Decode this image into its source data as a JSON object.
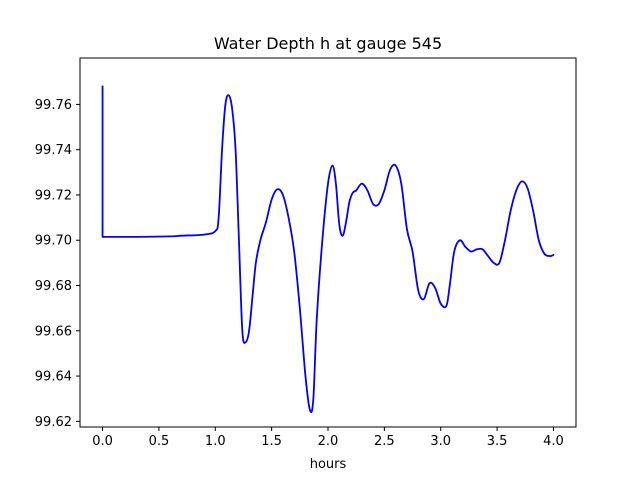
{
  "chart_data": {
    "type": "line",
    "title": "Water Depth h at gauge 545",
    "xlabel": "hours",
    "ylabel": "",
    "xlim": [
      -0.2,
      4.2
    ],
    "ylim": [
      99.6175,
      99.7805
    ],
    "grid": false,
    "xticks": [
      0.0,
      0.5,
      1.0,
      1.5,
      2.0,
      2.5,
      3.0,
      3.5,
      4.0
    ],
    "xtick_labels": [
      "0.0",
      "0.5",
      "1.0",
      "1.5",
      "2.0",
      "2.5",
      "3.0",
      "3.5",
      "4.0"
    ],
    "yticks": [
      99.62,
      99.64,
      99.66,
      99.68,
      99.7,
      99.72,
      99.74,
      99.76
    ],
    "ytick_labels": [
      "99.62",
      "99.64",
      "99.66",
      "99.68",
      "99.70",
      "99.72",
      "99.74",
      "99.76"
    ],
    "series": [
      {
        "color": "#0000ff",
        "x": [
          0.0,
          0.0,
          0.005,
          0.3,
          0.6,
          0.7,
          0.9,
          1.0,
          1.03,
          1.06,
          1.09,
          1.12,
          1.15,
          1.18,
          1.21,
          1.24,
          1.27,
          1.3,
          1.33,
          1.36,
          1.4,
          1.45,
          1.5,
          1.55,
          1.6,
          1.65,
          1.7,
          1.75,
          1.8,
          1.84,
          1.87,
          1.9,
          1.95,
          2.0,
          2.04,
          2.07,
          2.1,
          2.13,
          2.16,
          2.19,
          2.22,
          2.25,
          2.3,
          2.35,
          2.4,
          2.45,
          2.5,
          2.55,
          2.6,
          2.65,
          2.7,
          2.75,
          2.8,
          2.85,
          2.9,
          2.95,
          3.0,
          3.05,
          3.08,
          3.12,
          3.17,
          3.22,
          3.27,
          3.32,
          3.37,
          3.42,
          3.47,
          3.52,
          3.57,
          3.62,
          3.67,
          3.72,
          3.77,
          3.82,
          3.87,
          3.92,
          3.97,
          4.0
        ],
        "values": [
          99.768,
          99.7015,
          99.7015,
          99.7015,
          99.7017,
          99.702,
          99.7025,
          99.704,
          99.71,
          99.74,
          99.76,
          99.764,
          99.758,
          99.74,
          99.7,
          99.66,
          99.655,
          99.66,
          99.675,
          99.69,
          99.7,
          99.708,
          99.718,
          99.7225,
          99.72,
          99.71,
          99.695,
          99.67,
          99.64,
          99.625,
          99.63,
          99.665,
          99.7,
          99.725,
          99.733,
          99.725,
          99.707,
          99.702,
          99.708,
          99.717,
          99.721,
          99.722,
          99.725,
          99.722,
          99.716,
          99.716,
          99.722,
          99.731,
          99.733,
          99.725,
          99.705,
          99.695,
          99.678,
          99.674,
          99.681,
          99.679,
          99.672,
          99.671,
          99.68,
          99.695,
          99.7,
          99.697,
          99.695,
          99.696,
          99.696,
          99.693,
          99.69,
          99.69,
          99.7,
          99.713,
          99.722,
          99.726,
          99.723,
          99.713,
          99.7,
          99.694,
          99.693,
          99.6935
        ]
      }
    ]
  }
}
